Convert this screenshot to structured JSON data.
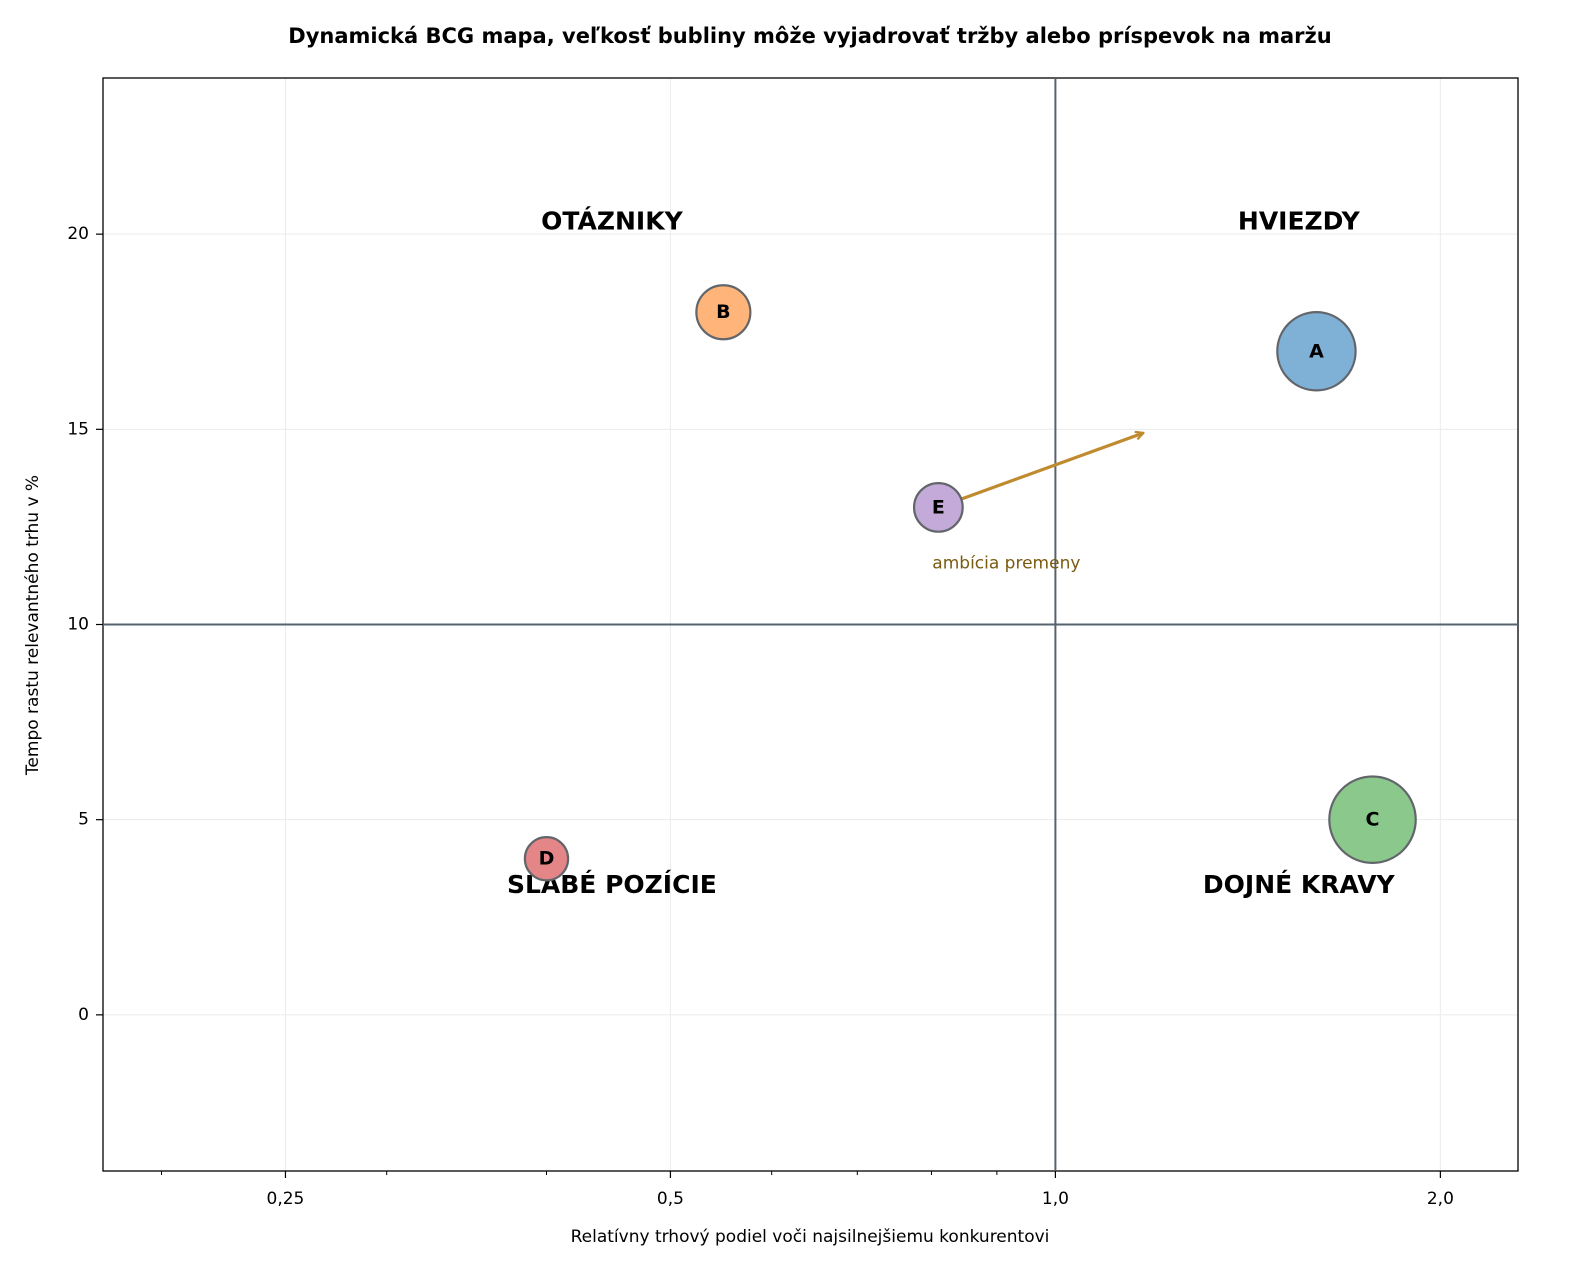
{
  "chart_data": {
    "type": "scatter",
    "title": "Dynamická BCG mapa, veľkosť bubliny môže vyjadrovať tržby alebo príspevok na maržu",
    "xlabel": "Relatívny trhový podiel voči najsilnejšiemu konkurentovi",
    "ylabel": "Tempo rastu relevantného trhu v %",
    "x_scale": "log",
    "xlim": [
      0.18,
      2.3
    ],
    "ylim": [
      -4,
      24
    ],
    "x_ticks": [
      {
        "value": 0.25,
        "label": "0,25"
      },
      {
        "value": 0.5,
        "label": "0,5"
      },
      {
        "value": 1.0,
        "label": "1,0"
      },
      {
        "value": 2.0,
        "label": "2,0"
      }
    ],
    "y_ticks": [
      {
        "value": 0,
        "label": "0"
      },
      {
        "value": 5,
        "label": "5"
      },
      {
        "value": 10,
        "label": "10"
      },
      {
        "value": 15,
        "label": "15"
      },
      {
        "value": 20,
        "label": "20"
      }
    ],
    "grid": true,
    "divider_x": 1.0,
    "divider_y": 10,
    "quadrants": [
      {
        "label": "OTÁZNIKY",
        "x": 0.45,
        "y": 20.3
      },
      {
        "label": "HVIEZDY",
        "x": 1.55,
        "y": 20.3
      },
      {
        "label": "SLABÉ POZÍCIE",
        "x": 0.45,
        "y": 3.3
      },
      {
        "label": "DOJNÉ KRAVY",
        "x": 1.55,
        "y": 3.3
      }
    ],
    "points": [
      {
        "label": "A",
        "x": 1.6,
        "y": 17,
        "size": 1.45,
        "color": "#7fb0d5"
      },
      {
        "label": "B",
        "x": 0.55,
        "y": 18,
        "size": 1.0,
        "color": "#ffb57a"
      },
      {
        "label": "C",
        "x": 1.77,
        "y": 5,
        "size": 1.6,
        "color": "#8ac98b"
      },
      {
        "label": "D",
        "x": 0.4,
        "y": 4,
        "size": 0.8,
        "color": "#e48587"
      },
      {
        "label": "E",
        "x": 0.81,
        "y": 13,
        "size": 0.9,
        "color": "#c4aad8"
      }
    ],
    "annotation": {
      "text": "ambícia premeny",
      "from": {
        "x": 0.81,
        "y": 13
      },
      "to": {
        "x": 1.17,
        "y": 14.9
      },
      "color": "#c08a2e"
    }
  }
}
